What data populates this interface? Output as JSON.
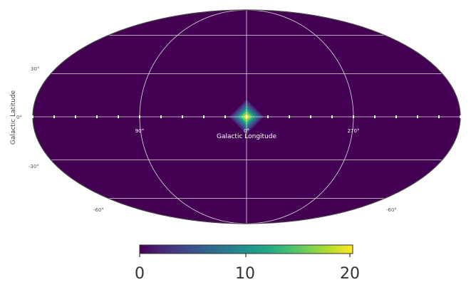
{
  "chart_data": {
    "type": "heatmap",
    "projection": "mollweide",
    "xlabel": "Galactic Longitude",
    "ylabel": "Galactic Latitude",
    "lon_tick_labels": [
      "90°",
      "0°",
      "270°"
    ],
    "lat_tick_labels": [
      "30°",
      "0°",
      "-30°",
      "-60°",
      "-60°"
    ],
    "colormap": "viridis",
    "colorbar": {
      "min": 0,
      "max": 20,
      "tick_labels": [
        "0",
        "10",
        "20"
      ]
    },
    "background_value": 0,
    "source": {
      "lon": 0,
      "lat": 0,
      "peak": 20,
      "rings": [
        20,
        16,
        12,
        8,
        5,
        2.5
      ]
    },
    "grid": true,
    "grid_color": "#dddddd",
    "background_color": "#440154"
  }
}
